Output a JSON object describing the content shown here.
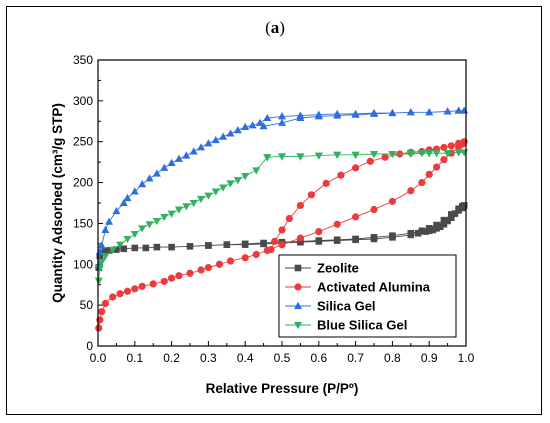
{
  "panel_label": {
    "open": "(",
    "letter": "a",
    "close": ")"
  },
  "chart_data": {
    "type": "line",
    "xlabel": "Relative Pressure (P/Pº)",
    "ylabel": "Quantity Adsorbed (cm³/g STP)",
    "xlim": [
      0.0,
      1.0
    ],
    "ylim": [
      0,
      350
    ],
    "xticks": [
      "0.0",
      "0.1",
      "0.2",
      "0.3",
      "0.4",
      "0.5",
      "0.6",
      "0.7",
      "0.8",
      "0.9",
      "1.0"
    ],
    "yticks": [
      "0",
      "50",
      "100",
      "150",
      "200",
      "250",
      "300",
      "350"
    ],
    "legend_position": "bottom-right",
    "series": [
      {
        "name": "Zeolite",
        "color": "#4a4a4a",
        "marker": "square",
        "x": [
          0.002,
          0.005,
          0.01,
          0.02,
          0.03,
          0.05,
          0.07,
          0.1,
          0.13,
          0.16,
          0.2,
          0.25,
          0.3,
          0.35,
          0.4,
          0.45,
          0.5,
          0.55,
          0.6,
          0.65,
          0.7,
          0.75,
          0.8,
          0.85,
          0.87,
          0.89,
          0.9,
          0.91,
          0.92,
          0.93,
          0.94,
          0.95,
          0.96,
          0.97,
          0.98,
          0.99,
          0.995,
          0.99,
          0.98,
          0.96,
          0.94,
          0.92,
          0.9,
          0.88,
          0.85,
          0.8,
          0.75,
          0.7,
          0.65,
          0.6,
          0.55,
          0.5,
          0.45,
          0.4,
          0.35,
          0.3
        ],
        "y": [
          96,
          110,
          114,
          116,
          117,
          118,
          119,
          120,
          120,
          121,
          121,
          122,
          123,
          124,
          124,
          125,
          126,
          127,
          128,
          129,
          130,
          131,
          133,
          136,
          138,
          140,
          141,
          142,
          144,
          146,
          149,
          153,
          157,
          162,
          166,
          169,
          172,
          171,
          168,
          161,
          154,
          148,
          144,
          141,
          138,
          135,
          133,
          131,
          130,
          129,
          128,
          127,
          126,
          125,
          124,
          123
        ]
      },
      {
        "name": "Activated Alumina",
        "color": "#ee3a3a",
        "marker": "circle",
        "x": [
          0.002,
          0.005,
          0.01,
          0.02,
          0.04,
          0.06,
          0.08,
          0.1,
          0.12,
          0.15,
          0.18,
          0.2,
          0.22,
          0.25,
          0.28,
          0.3,
          0.33,
          0.36,
          0.4,
          0.43,
          0.46,
          0.5,
          0.55,
          0.6,
          0.65,
          0.7,
          0.75,
          0.8,
          0.85,
          0.88,
          0.9,
          0.92,
          0.94,
          0.96,
          0.98,
          0.99,
          0.995,
          0.98,
          0.96,
          0.94,
          0.92,
          0.9,
          0.88,
          0.85,
          0.82,
          0.78,
          0.74,
          0.7,
          0.66,
          0.62,
          0.58,
          0.55,
          0.52,
          0.5,
          0.48,
          0.47
        ],
        "y": [
          22,
          32,
          42,
          52,
          60,
          64,
          67,
          70,
          73,
          76,
          79,
          83,
          86,
          89,
          93,
          96,
          100,
          104,
          108,
          112,
          117,
          124,
          132,
          140,
          149,
          158,
          167,
          177,
          190,
          200,
          210,
          219,
          228,
          236,
          244,
          247,
          250,
          248,
          245,
          243,
          241,
          240,
          238,
          237,
          235,
          231,
          226,
          218,
          209,
          199,
          185,
          172,
          156,
          142,
          128,
          118
        ]
      },
      {
        "name": "Silica Gel",
        "color": "#2e6fe0",
        "marker": "triangle-up",
        "x": [
          0.002,
          0.005,
          0.01,
          0.02,
          0.03,
          0.05,
          0.07,
          0.08,
          0.1,
          0.12,
          0.14,
          0.16,
          0.18,
          0.2,
          0.22,
          0.24,
          0.26,
          0.28,
          0.3,
          0.32,
          0.34,
          0.36,
          0.38,
          0.4,
          0.42,
          0.44,
          0.46,
          0.5,
          0.55,
          0.6,
          0.65,
          0.7,
          0.75,
          0.8,
          0.85,
          0.9,
          0.95,
          0.98,
          0.995,
          0.98,
          0.95,
          0.9,
          0.85,
          0.8,
          0.75,
          0.7,
          0.65,
          0.6,
          0.55,
          0.5,
          0.45
        ],
        "y": [
          99,
          115,
          123,
          142,
          152,
          165,
          175,
          181,
          189,
          198,
          205,
          211,
          218,
          224,
          229,
          233,
          238,
          243,
          248,
          252,
          256,
          260,
          264,
          268,
          270,
          273,
          279,
          281,
          282,
          283,
          284,
          284,
          285,
          285,
          286,
          286,
          287,
          288,
          288,
          288,
          287,
          286,
          286,
          285,
          284,
          283,
          282,
          281,
          279,
          273,
          269
        ]
      },
      {
        "name": "Blue Silica Gel",
        "color": "#2fb361",
        "marker": "triangle-down",
        "x": [
          0.002,
          0.005,
          0.01,
          0.02,
          0.04,
          0.06,
          0.08,
          0.1,
          0.12,
          0.14,
          0.16,
          0.18,
          0.2,
          0.22,
          0.24,
          0.26,
          0.28,
          0.3,
          0.32,
          0.34,
          0.36,
          0.38,
          0.4,
          0.43,
          0.46,
          0.5,
          0.55,
          0.6,
          0.65,
          0.7,
          0.75,
          0.8,
          0.85,
          0.88,
          0.9,
          0.92,
          0.95,
          0.98,
          0.995,
          0.98,
          0.95,
          0.9,
          0.85,
          0.8,
          0.75,
          0.7,
          0.65,
          0.6,
          0.55,
          0.5,
          0.46
        ],
        "y": [
          80,
          95,
          103,
          110,
          118,
          124,
          131,
          137,
          144,
          149,
          153,
          158,
          162,
          167,
          171,
          175,
          180,
          184,
          189,
          194,
          199,
          203,
          208,
          215,
          231,
          232,
          232,
          233,
          234,
          234,
          235,
          235,
          235,
          236,
          236,
          236,
          236,
          237,
          237,
          237,
          236,
          236,
          236,
          235,
          235,
          234,
          234,
          233,
          232,
          232,
          231
        ]
      }
    ]
  }
}
